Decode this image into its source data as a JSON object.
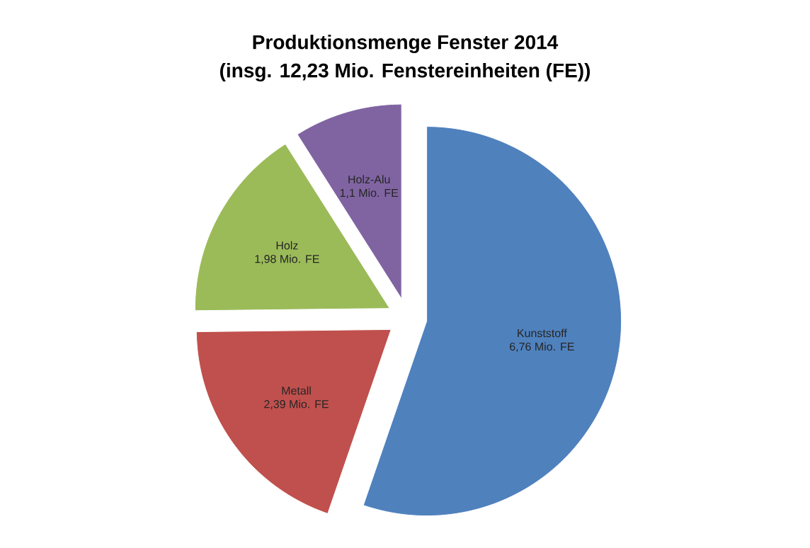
{
  "chart_data": {
    "type": "pie",
    "title": "Produktionsmenge Fenster 2014",
    "subtitle": "(insg. 12,23 Mio. Fenstereinheiten (FE))",
    "categories": [
      "Kunststoff",
      "Metall",
      "Holz",
      "Holz-Alu"
    ],
    "values": [
      6.76,
      2.39,
      1.98,
      1.1
    ],
    "value_labels": [
      "6,76 Mio. FE",
      "2,39 Mio. FE",
      "1,98 Mio. FE",
      "1,1 Mio. FE"
    ],
    "colors": [
      "#4f81bd",
      "#c0504d",
      "#9bbb59",
      "#8064a2"
    ]
  }
}
